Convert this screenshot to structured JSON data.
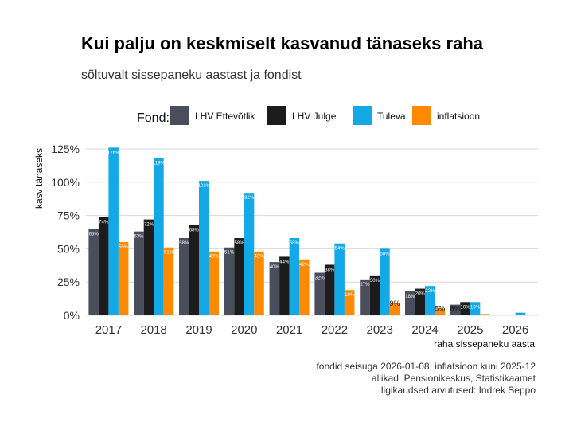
{
  "chart_data": {
    "type": "bar",
    "title": "Kui palju on keskmiselt kasvanud tänaseks raha",
    "subtitle": "sõltuvalt sissepaneku aastast ja fondist",
    "xlabel": "raha sissepaneku aasta",
    "ylabel": "kasv tänaseks",
    "legend_title": "Fond:",
    "legend_position": "top",
    "categories": [
      "2017",
      "2018",
      "2019",
      "2020",
      "2021",
      "2022",
      "2023",
      "2024",
      "2025",
      "2026"
    ],
    "ylim": [
      0,
      130
    ],
    "yticks": [
      0,
      25,
      50,
      75,
      100,
      125
    ],
    "ytick_labels": [
      "0%",
      "25%",
      "50%",
      "75%",
      "100%",
      "125%"
    ],
    "series": [
      {
        "name": "LHV Ettevõtlik",
        "color": "#4a4e5c",
        "values": [
          65,
          63,
          58,
          51,
          40,
          32,
          27,
          18,
          8,
          0.5
        ],
        "labels": [
          "65%",
          "63%",
          "58%",
          "51%",
          "40%",
          "32%",
          "27%",
          "18%",
          "8%",
          ""
        ]
      },
      {
        "name": "LHV Julge",
        "color": "#1c1c1c",
        "values": [
          74,
          72,
          68,
          58,
          44,
          38,
          30,
          20,
          10,
          0.5
        ],
        "labels": [
          "74%",
          "72%",
          "68%",
          "58%",
          "44%",
          "38%",
          "30%",
          "20%",
          "10%",
          ""
        ]
      },
      {
        "name": "Tuleva",
        "color": "#13a8e6",
        "values": [
          126,
          118,
          101,
          92,
          58,
          54,
          50,
          22,
          10,
          2
        ],
        "labels": [
          "126%",
          "118%",
          "101%",
          "92%",
          "58%",
          "54%",
          "50%",
          "22%",
          "10%",
          ""
        ]
      },
      {
        "name": "inflatsioon",
        "color": "#ff8a00",
        "values": [
          55,
          51,
          48,
          48,
          42,
          19,
          9,
          5,
          1,
          0
        ],
        "labels": [
          "55%",
          "51%",
          "48%",
          "48%",
          "42%",
          "19%",
          "9%",
          "5%",
          "",
          ""
        ]
      }
    ],
    "caption": [
      "fondid seisuga 2026-01-08, inflatsioon kuni 2025-12",
      "allikad: Pensionikeskus, Statistikaamet",
      "ligikaudsed arvutused: Indrek Seppo"
    ]
  }
}
